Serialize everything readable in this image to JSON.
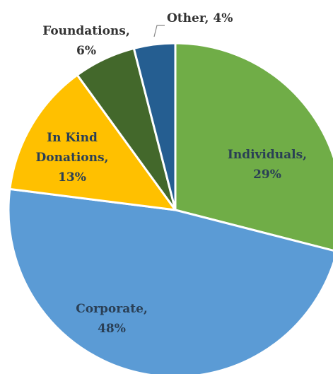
{
  "chart_data": {
    "type": "pie",
    "title": "",
    "slices": [
      {
        "name": "Individuals",
        "value": 29,
        "pct_label": "29%",
        "color": "#70ad47"
      },
      {
        "name": "Corporate",
        "value": 48,
        "pct_label": "48%",
        "color": "#5b9bd5"
      },
      {
        "name": "In Kind Donations",
        "value": 13,
        "pct_label": "13%",
        "color": "#ffc000"
      },
      {
        "name": "Foundations",
        "value": 6,
        "pct_label": "6%",
        "color": "#43682b"
      },
      {
        "name": "Other",
        "value": 4,
        "pct_label": "4%",
        "color": "#255e91"
      }
    ],
    "labels": {
      "individuals": [
        "Individuals,",
        "29%"
      ],
      "corporate": [
        "Corporate,",
        "48%"
      ],
      "in_kind": [
        "In Kind",
        "Donations,",
        "13%"
      ],
      "foundations": [
        "Foundations,",
        "6%"
      ],
      "other": [
        "Other, 4%"
      ]
    },
    "start_angle_deg": 0,
    "direction": "clockwise"
  }
}
